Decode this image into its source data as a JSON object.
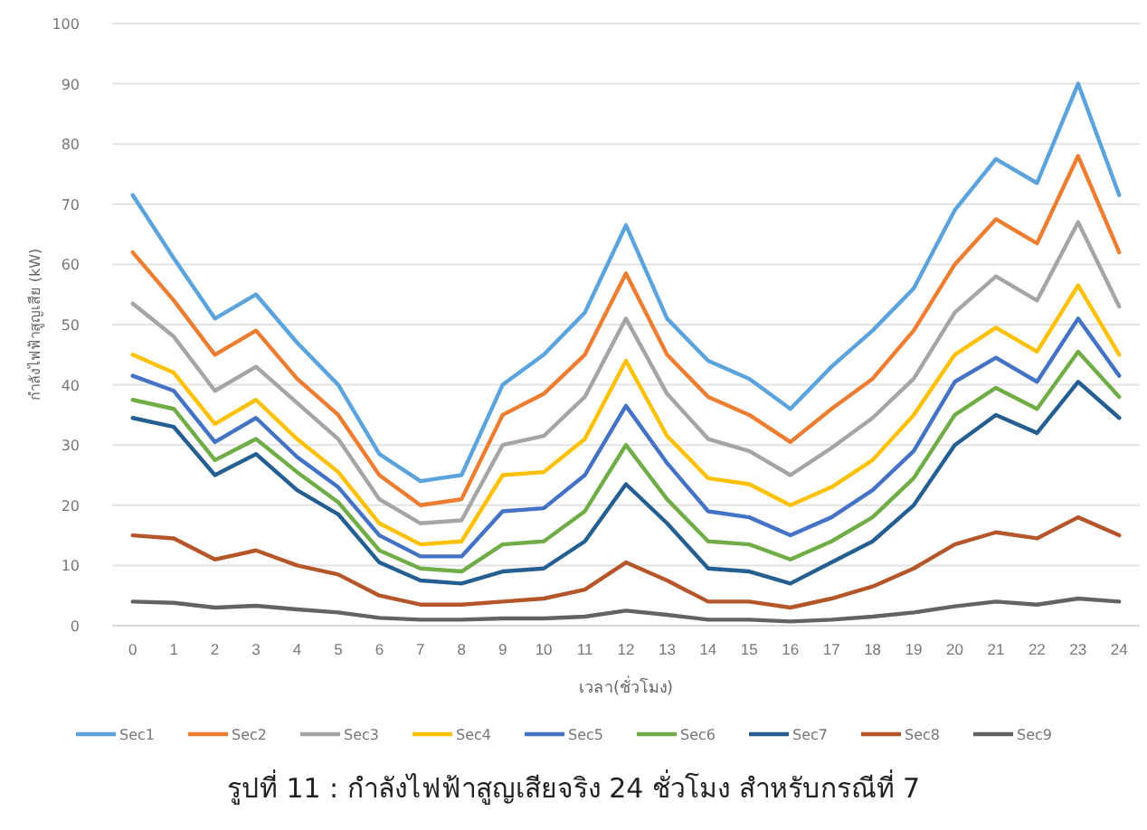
{
  "chart_data": {
    "type": "line",
    "title": "รูปที่ 11 :  กำลังไฟฟ้าสูญเสียจริง 24 ชั่วโมง สำหรับกรณีที่ 7",
    "xlabel": "เวลา(ชั่วโมง)",
    "ylabel": "กำลังไฟฟ้าสูญเสีย (kW)",
    "x": [
      0,
      1,
      2,
      3,
      4,
      5,
      6,
      7,
      8,
      9,
      10,
      11,
      12,
      13,
      14,
      15,
      16,
      17,
      18,
      19,
      20,
      21,
      22,
      23,
      24
    ],
    "xlim": [
      -0.5,
      24.5
    ],
    "xticks": [
      0,
      1,
      2,
      3,
      4,
      5,
      6,
      7,
      8,
      9,
      10,
      11,
      12,
      13,
      14,
      15,
      16,
      17,
      18,
      19,
      20,
      21,
      22,
      23,
      24
    ],
    "ylim": [
      0,
      100
    ],
    "yticks": [
      0,
      10,
      20,
      30,
      40,
      50,
      60,
      70,
      80,
      90,
      100
    ],
    "grid": "y",
    "legend": "bottom",
    "marker": "none",
    "line_style": "solid",
    "series": [
      {
        "name": "Sec1",
        "color": "#5ba3dc",
        "values": [
          71.5,
          61,
          51,
          55,
          47,
          40,
          28.5,
          24,
          25,
          40,
          45,
          52,
          66.5,
          51,
          44,
          41,
          36,
          43,
          49,
          56,
          69,
          77.5,
          73.5,
          90,
          71.5
        ]
      },
      {
        "name": "Sec2",
        "color": "#ed7d31",
        "values": [
          62,
          54,
          45,
          49,
          41,
          35,
          25,
          20,
          21,
          35,
          38.5,
          45,
          58.5,
          45,
          38,
          35,
          30.5,
          36,
          41,
          49,
          60,
          67.5,
          63.5,
          78,
          62
        ]
      },
      {
        "name": "Sec3",
        "color": "#a5a5a5",
        "values": [
          53.5,
          48,
          39,
          43,
          37,
          31,
          21,
          17,
          17.5,
          30,
          31.5,
          38,
          51,
          38.5,
          31,
          29,
          25,
          29.5,
          34.5,
          41,
          52,
          58,
          54,
          67,
          53
        ]
      },
      {
        "name": "Sec4",
        "color": "#ffc000",
        "values": [
          45,
          42,
          33.5,
          37.5,
          31,
          25.5,
          17,
          13.5,
          14,
          25,
          25.5,
          31,
          44,
          31.5,
          24.5,
          23.5,
          20,
          23,
          27.5,
          35,
          45,
          49.5,
          45.5,
          56.5,
          45
        ]
      },
      {
        "name": "Sec5",
        "color": "#4472c4",
        "values": [
          41.5,
          39,
          30.5,
          34.5,
          28,
          23,
          15,
          11.5,
          11.5,
          19,
          19.5,
          25,
          36.5,
          27,
          19,
          18,
          15,
          18,
          22.5,
          29,
          40.5,
          44.5,
          40.5,
          51,
          41.5
        ]
      },
      {
        "name": "Sec6",
        "color": "#70ad47",
        "values": [
          37.5,
          36,
          27.5,
          31,
          25.5,
          20.5,
          12.5,
          9.5,
          9,
          13.5,
          14,
          19,
          30,
          21,
          14,
          13.5,
          11,
          14,
          18,
          24.5,
          35,
          39.5,
          36,
          45.5,
          38
        ]
      },
      {
        "name": "Sec7",
        "color": "#255e91",
        "values": [
          34.5,
          33,
          25,
          28.5,
          22.5,
          18.5,
          10.5,
          7.5,
          7,
          9,
          9.5,
          14,
          23.5,
          17,
          9.5,
          9,
          7,
          10.5,
          14,
          20,
          30,
          35,
          32,
          40.5,
          34.5
        ]
      },
      {
        "name": "Sec8",
        "color": "#b5562a",
        "values": [
          15,
          14.5,
          11,
          12.5,
          10,
          8.5,
          5,
          3.5,
          3.5,
          4,
          4.5,
          6,
          10.5,
          7.5,
          4,
          4,
          3,
          4.5,
          6.5,
          9.5,
          13.5,
          15.5,
          14.5,
          18,
          15
        ]
      },
      {
        "name": "Sec9",
        "color": "#636363",
        "values": [
          4,
          3.8,
          3,
          3.3,
          2.7,
          2.2,
          1.3,
          1,
          1,
          1.2,
          1.2,
          1.5,
          2.5,
          1.8,
          1,
          1,
          0.7,
          1,
          1.5,
          2.2,
          3.2,
          4,
          3.5,
          4.5,
          4
        ]
      }
    ]
  }
}
